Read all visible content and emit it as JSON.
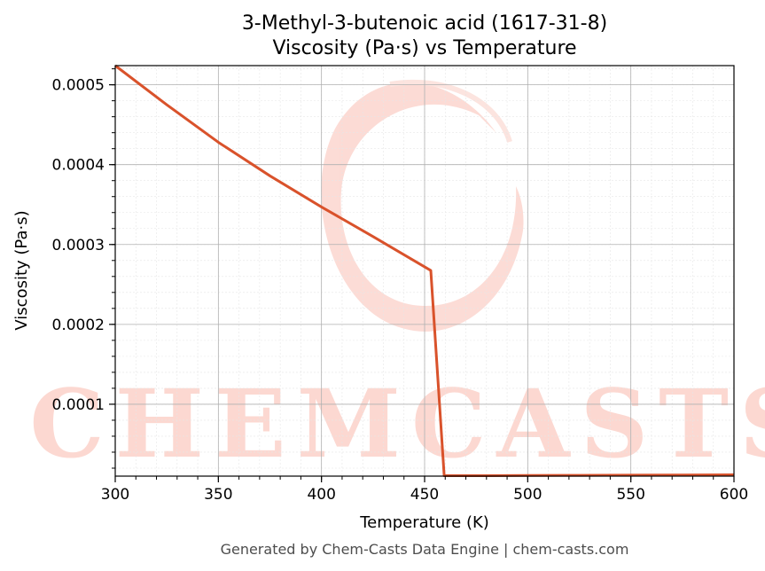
{
  "watermark": {
    "text": "CHEMCASTS",
    "color": "#fcd8d1"
  },
  "chart_data": {
    "type": "line",
    "title": "3-Methyl-3-butenoic acid (1617-31-8)",
    "subtitle": "Viscosity (Pa·s) vs Temperature",
    "xlabel": "Temperature (K)",
    "ylabel": "Viscosity (Pa·s)",
    "xlim": [
      300,
      600
    ],
    "ylim": [
      1e-05,
      0.000524
    ],
    "grid": true,
    "line_color": "#d9522b",
    "x_ticks": [
      {
        "value": 300,
        "label": "300"
      },
      {
        "value": 350,
        "label": "350"
      },
      {
        "value": 400,
        "label": "400"
      },
      {
        "value": 450,
        "label": "450"
      },
      {
        "value": 500,
        "label": "500"
      },
      {
        "value": 550,
        "label": "550"
      },
      {
        "value": 600,
        "label": "600"
      }
    ],
    "y_ticks": [
      {
        "value": 0.0001,
        "label": "0.0001"
      },
      {
        "value": 0.0002,
        "label": "0.0002"
      },
      {
        "value": 0.0003,
        "label": "0.0003"
      },
      {
        "value": 0.0004,
        "label": "0.0004"
      },
      {
        "value": 0.0005,
        "label": "0.0005"
      }
    ],
    "series": [
      {
        "x": [
          300,
          325,
          350,
          375,
          400,
          425,
          453,
          459.5,
          480,
          500,
          525,
          550,
          575,
          600
        ],
        "y": [
          0.000524,
          0.000475,
          0.000428,
          0.000386,
          0.000347,
          0.00031,
          0.0002675,
          1.05e-05,
          1.06e-05,
          1.08e-05,
          1.1e-05,
          1.12e-05,
          1.14e-05,
          1.16e-05
        ]
      }
    ]
  },
  "footer": {
    "text": "Generated by Chem-Casts Data Engine | chem-casts.com"
  }
}
